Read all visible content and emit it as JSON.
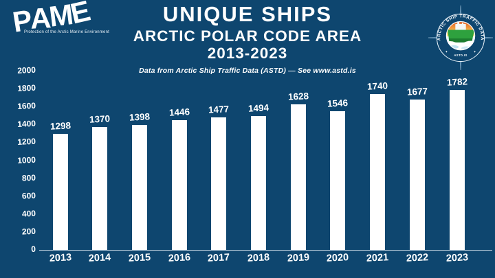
{
  "header": {
    "pame_logo": {
      "letters": [
        "P",
        "A",
        "M",
        "E"
      ],
      "tagline": "Protection of the Arctic Marine Environment"
    },
    "title": "UNIQUE SHIPS",
    "subtitle_line1": "ARCTIC POLAR CODE AREA",
    "subtitle_line2": "2013-2023",
    "source_note": "Data from Arctic Ship Traffic Data (ASTD) — See www.astd.is",
    "astd_logo": {
      "ring_text": "ARCTIC SHIP TRAFFIC DATA",
      "site_text": "ASTD.IS",
      "star_glyph": "✦"
    }
  },
  "chart_data": {
    "type": "bar",
    "categories": [
      "2013",
      "2014",
      "2015",
      "2016",
      "2017",
      "2018",
      "2019",
      "2020",
      "2021",
      "2022",
      "2023"
    ],
    "values": [
      1298,
      1370,
      1398,
      1446,
      1477,
      1494,
      1628,
      1546,
      1740,
      1677,
      1782
    ],
    "title": "UNIQUE SHIPS",
    "subtitle": "ARCTIC POLAR CODE AREA 2013-2023",
    "source": "Data from Arctic Ship Traffic Data (ASTD) — See www.astd.is",
    "xlabel": "",
    "ylabel": "",
    "ylim": [
      0,
      2000
    ],
    "ytick_step": 200,
    "grid": false,
    "legend_position": "none",
    "data_labels": true,
    "bar_color": "#ffffff",
    "text_color": "#ffffff",
    "background_color": "#0e466f"
  }
}
